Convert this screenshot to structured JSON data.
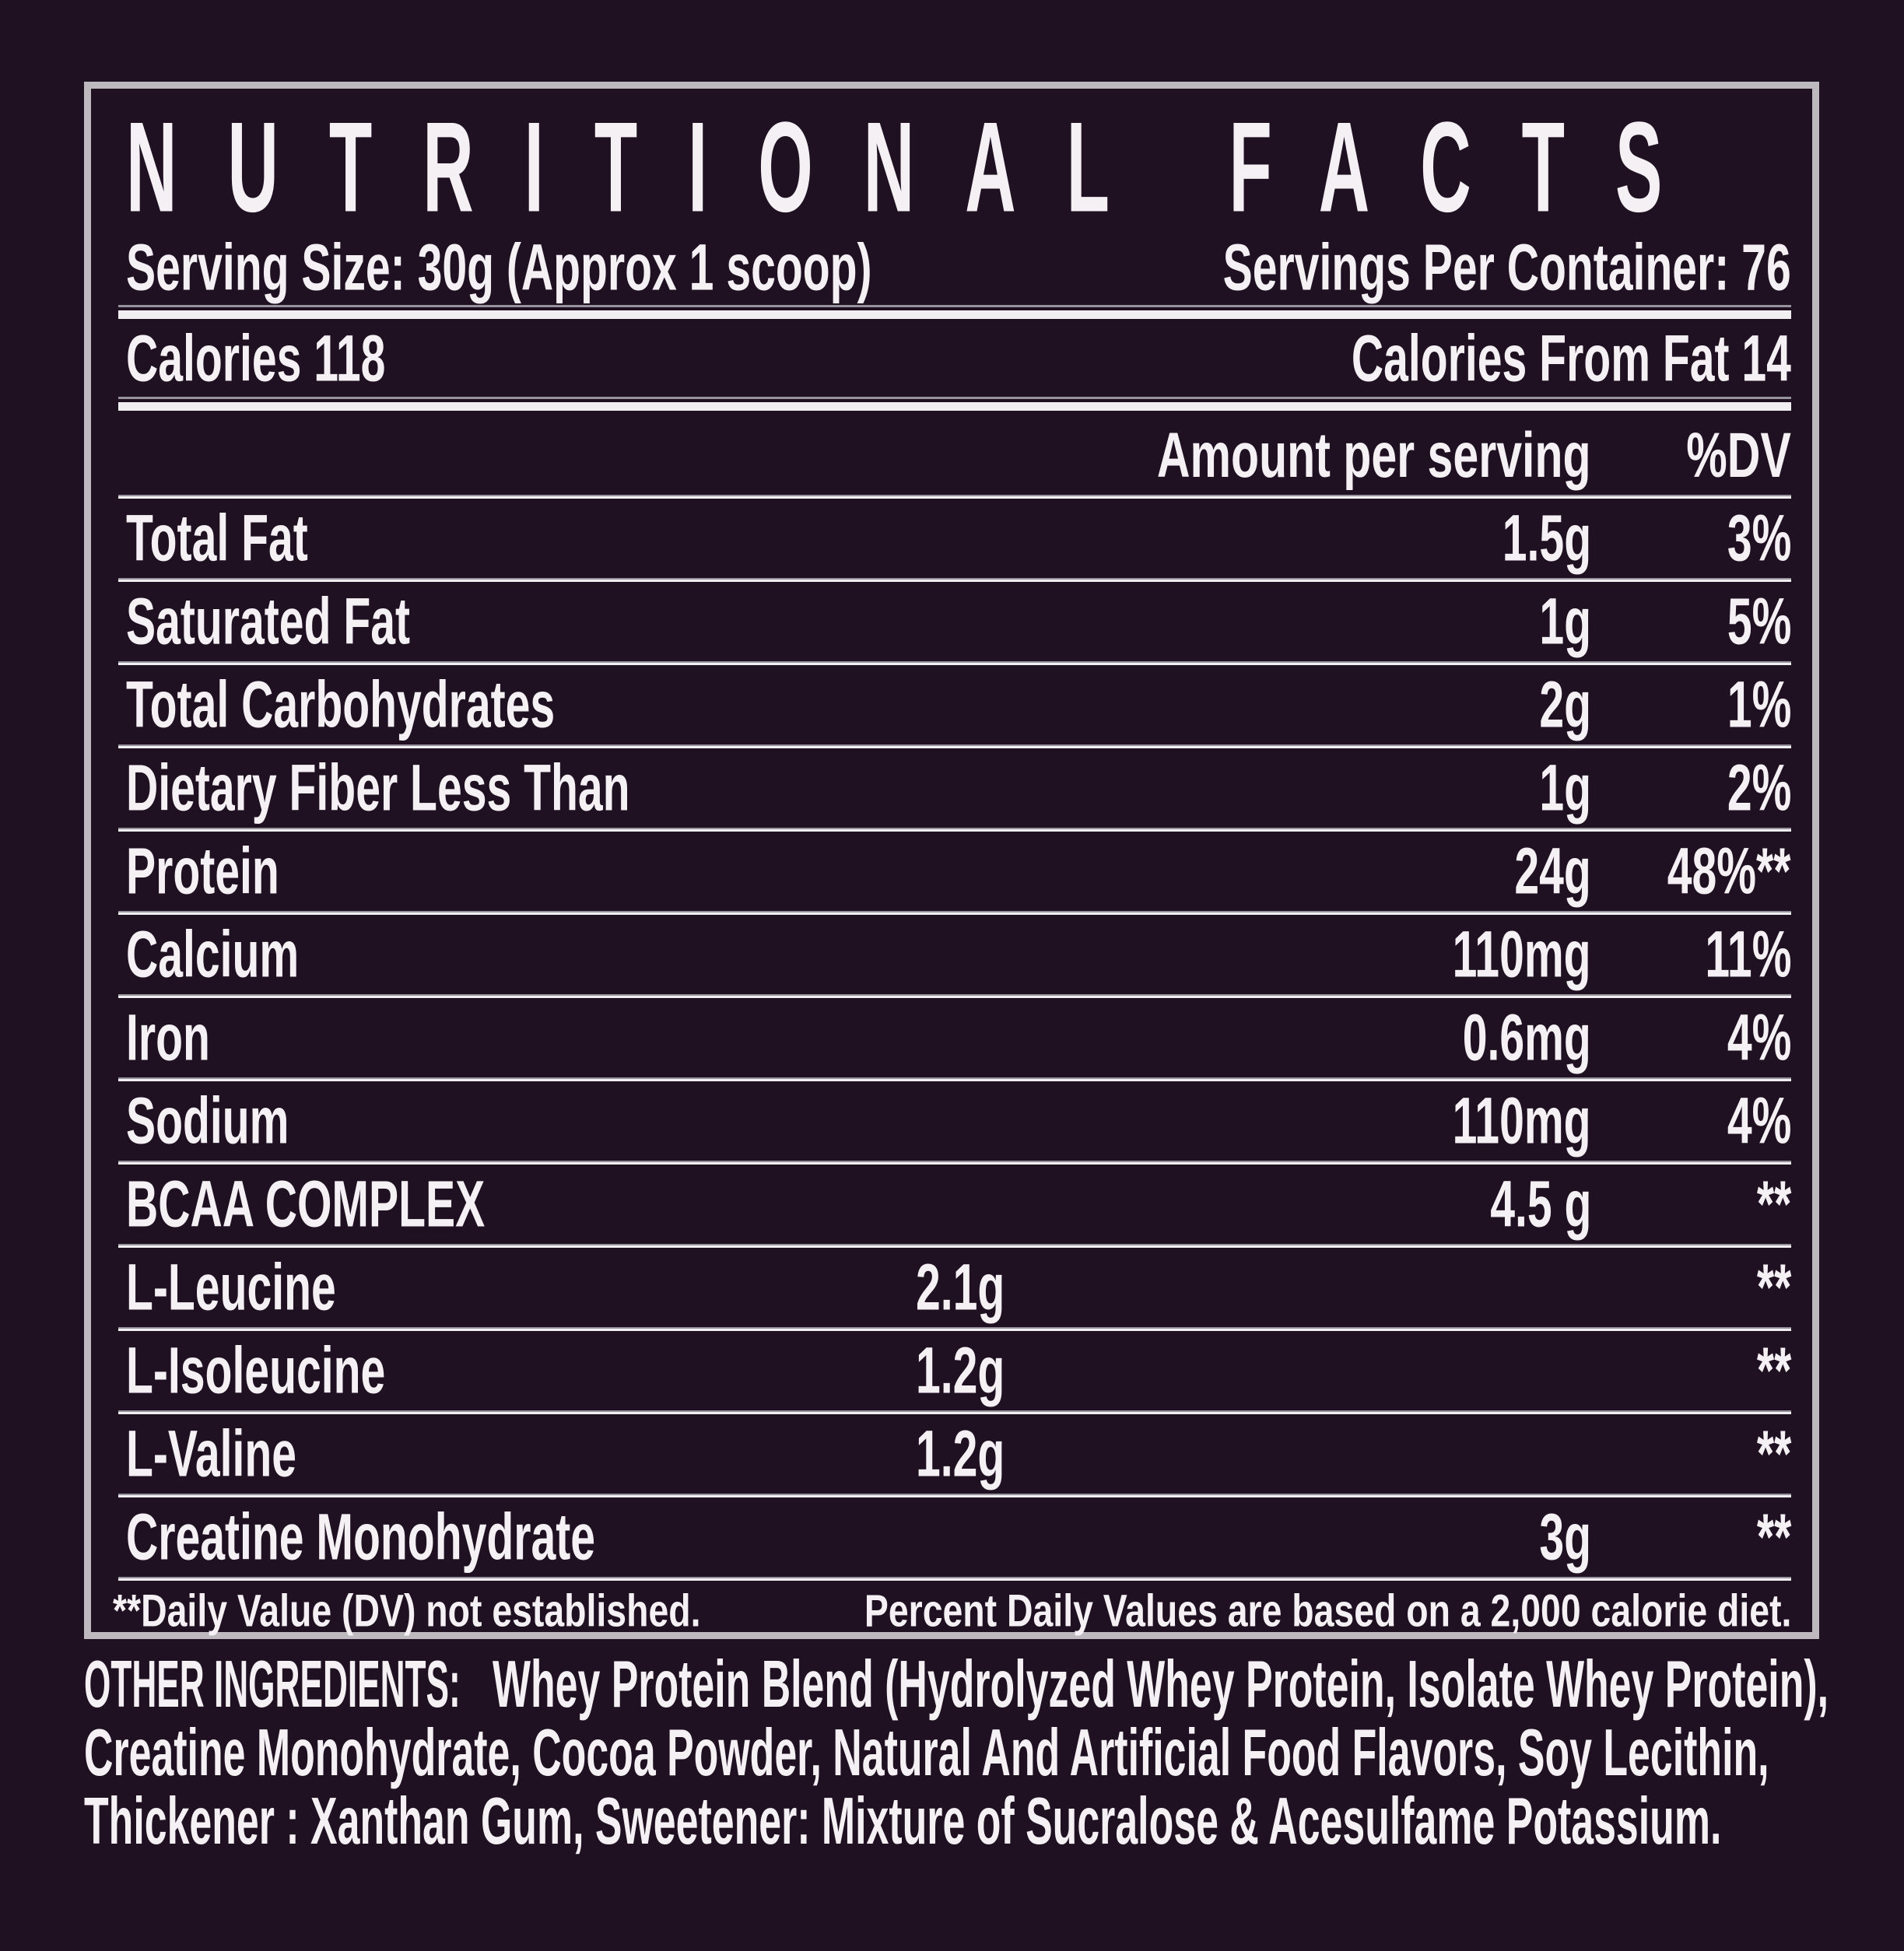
{
  "colors": {
    "background": "#1f1122",
    "text": "#f4f0f4",
    "rule": "#f2eff2",
    "rule_shadow": "#97939c",
    "border": "#bdb9be"
  },
  "panel": {
    "title": "NUTRITIONAL FACTS",
    "serving_size": "Serving Size: 30g (Approx 1 scoop)",
    "servings_per_container": "Servings Per Container: 76",
    "calories": "Calories 118",
    "calories_from_fat": "Calories From Fat 14",
    "amount_header": "Amount per serving",
    "dv_header": "%DV",
    "rows": [
      {
        "label": "Total Fat",
        "amount": "1.5g",
        "dv": "3%",
        "amount_col": "right"
      },
      {
        "label": "Saturated Fat",
        "amount": "1g",
        "dv": "5%",
        "amount_col": "right"
      },
      {
        "label": "Total Carbohydrates",
        "amount": "2g",
        "dv": "1%",
        "amount_col": "right"
      },
      {
        "label": "Dietary Fiber Less Than",
        "amount": "1g",
        "dv": "2%",
        "amount_col": "right"
      },
      {
        "label": "Protein",
        "amount": "24g",
        "dv": "48%**",
        "amount_col": "right"
      },
      {
        "label": "Calcium",
        "amount": "110mg",
        "dv": "11%",
        "amount_col": "right"
      },
      {
        "label": "Iron",
        "amount": "0.6mg",
        "dv": "4%",
        "amount_col": "right"
      },
      {
        "label": "Sodium",
        "amount": "110mg",
        "dv": "4%",
        "amount_col": "right"
      },
      {
        "label": "BCAA COMPLEX",
        "amount": "4.5 g",
        "dv": "**",
        "amount_col": "right"
      },
      {
        "label": "L-Leucine",
        "amount": "2.1g",
        "dv": "**",
        "amount_col": "mid"
      },
      {
        "label": "L-Isoleucine",
        "amount": "1.2g",
        "dv": "**",
        "amount_col": "mid"
      },
      {
        "label": "L-Valine",
        "amount": "1.2g",
        "dv": "**",
        "amount_col": "mid"
      },
      {
        "label": "Creatine Monohydrate",
        "amount": "3g",
        "dv": "**",
        "amount_col": "right"
      }
    ],
    "footnote_left": "**Daily Value (DV) not established.",
    "footnote_right": "Percent Daily Values are based on a 2,000 calorie diet."
  },
  "ingredients": {
    "lead": "OTHER INGREDIENTS:",
    "line1_rest": "Whey Protein Blend (Hydrolyzed Whey Protein, Isolate Whey Protein),",
    "line2": "Creatine Monohydrate, Cocoa Powder, Natural And Artificial Food Flavors, Soy Lecithin,",
    "line3": "Thickener : Xanthan Gum, Sweetener: Mixture of Sucralose & Acesulfame Potassium."
  }
}
